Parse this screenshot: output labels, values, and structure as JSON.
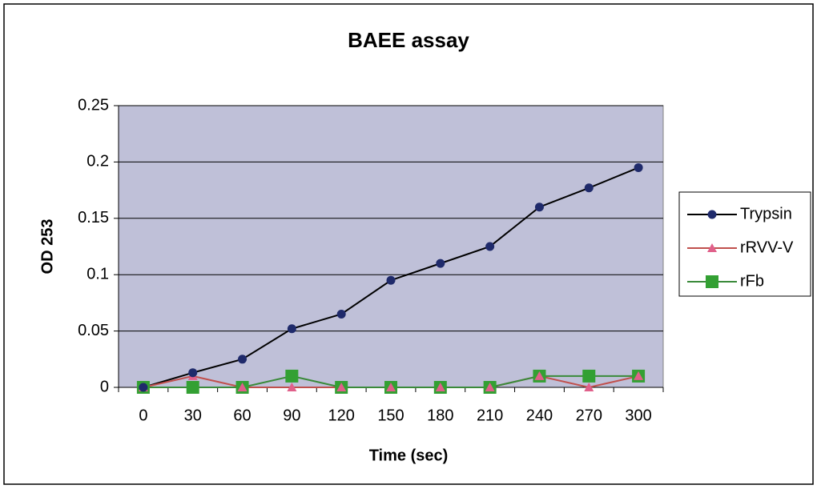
{
  "chart_data": {
    "type": "line",
    "title": "BAEE assay",
    "x_label": "Time (sec)",
    "y_label": "OD 253",
    "categories": [
      0,
      30,
      60,
      90,
      120,
      150,
      180,
      210,
      240,
      270,
      300
    ],
    "series": [
      {
        "name": "Trypsin",
        "color": "#1f2a6b",
        "line_color": "#000000",
        "marker": "circle",
        "values": [
          0,
          0.013,
          0.025,
          0.052,
          0.065,
          0.095,
          0.11,
          0.125,
          0.16,
          0.177,
          0.195
        ]
      },
      {
        "name": "rRVV-V",
        "color": "#e0608a",
        "line_color": "#c0504d",
        "marker": "triangle",
        "values": [
          0,
          0.01,
          0,
          0,
          0,
          0,
          0,
          0,
          0.01,
          0,
          0.01
        ]
      },
      {
        "name": "rFb",
        "color": "#33a033",
        "line_color": "#3a8a3a",
        "marker": "square",
        "values": [
          0,
          0,
          0,
          0.01,
          0,
          0,
          0,
          0,
          0.01,
          0.01,
          0.01
        ]
      }
    ],
    "ylim": [
      0,
      0.25
    ],
    "yticks": [
      0,
      0.05,
      0.1,
      0.15,
      0.2,
      0.25
    ],
    "grid": true,
    "legend": "right"
  }
}
